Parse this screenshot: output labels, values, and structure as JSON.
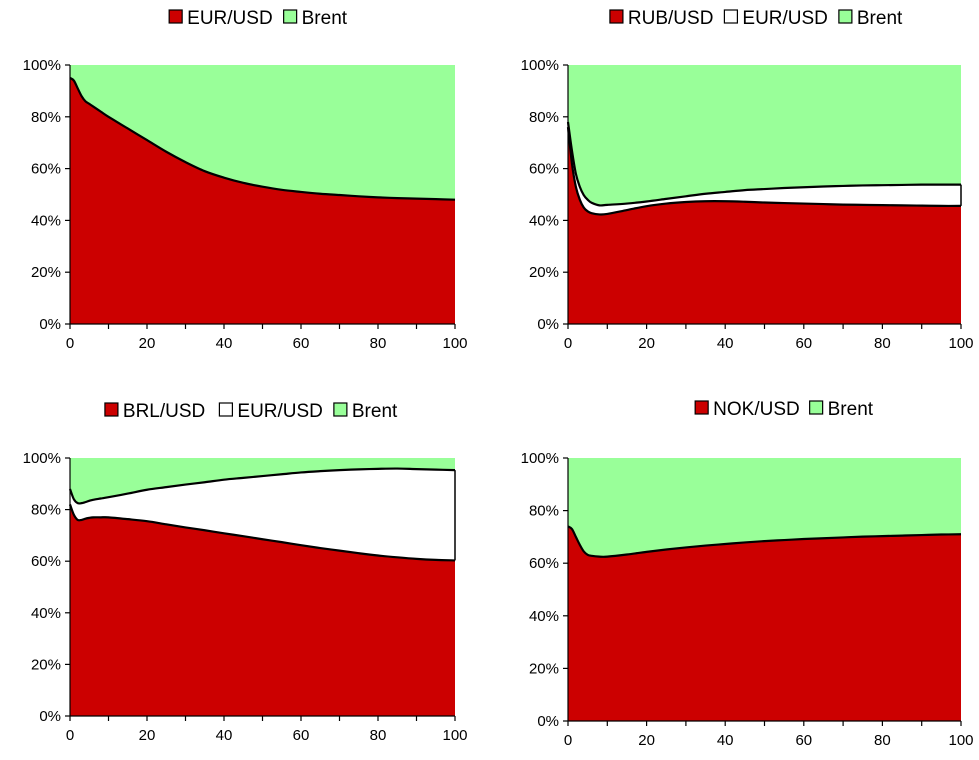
{
  "colors": {
    "red": "#cc0000",
    "green": "#99ff99",
    "white": "#ffffff",
    "line": "#000000"
  },
  "chart_data": [
    {
      "type": "area",
      "stacked": "percent",
      "x": [
        0,
        1,
        2,
        3,
        4,
        5,
        6,
        8,
        10,
        15,
        20,
        25,
        30,
        35,
        40,
        45,
        50,
        55,
        60,
        65,
        70,
        75,
        80,
        85,
        90,
        95,
        100
      ],
      "xlim": [
        0,
        100
      ],
      "ylim": [
        0,
        100
      ],
      "x_ticks": [
        "0",
        "20",
        "40",
        "60",
        "80",
        "100"
      ],
      "y_ticks": [
        "0%",
        "20%",
        "40%",
        "60%",
        "80%",
        "100%"
      ],
      "legend": [
        "EUR/USD",
        "Brent"
      ],
      "series": [
        {
          "name": "EUR/USD",
          "color": "red",
          "values": [
            95,
            94,
            91,
            88,
            86,
            85,
            84,
            82,
            80,
            75.5,
            71,
            66.5,
            62.5,
            59,
            56.5,
            54.5,
            53,
            51.8,
            51,
            50.3,
            49.8,
            49.3,
            48.9,
            48.6,
            48.4,
            48.2,
            48
          ]
        },
        {
          "name": "Brent",
          "color": "green",
          "values": [
            5,
            6,
            9,
            12,
            14,
            15,
            16,
            18,
            20,
            24.5,
            29,
            33.5,
            37.5,
            41,
            43.5,
            45.5,
            47,
            48.2,
            49,
            49.7,
            50.2,
            50.7,
            51.1,
            51.4,
            51.6,
            51.8,
            52
          ]
        }
      ]
    },
    {
      "type": "area",
      "stacked": "percent",
      "x": [
        0,
        1,
        2,
        3,
        4,
        5,
        6,
        8,
        10,
        15,
        20,
        25,
        30,
        35,
        40,
        45,
        50,
        55,
        60,
        65,
        70,
        75,
        80,
        85,
        90,
        95,
        100
      ],
      "xlim": [
        0,
        100
      ],
      "ylim": [
        0,
        100
      ],
      "x_ticks": [
        "0",
        "20",
        "40",
        "60",
        "80",
        "100"
      ],
      "y_ticks": [
        "0%",
        "20%",
        "40%",
        "60%",
        "80%",
        "100%"
      ],
      "legend": [
        "RUB/USD",
        "EUR/USD",
        "Brent"
      ],
      "series": [
        {
          "name": "RUB/USD",
          "color": "red",
          "values": [
            76,
            62,
            53,
            48,
            45,
            43.5,
            42.8,
            42.3,
            42.5,
            44,
            45.5,
            46.5,
            47.1,
            47.4,
            47.4,
            47.2,
            46.9,
            46.7,
            46.5,
            46.3,
            46.1,
            46,
            45.9,
            45.8,
            45.7,
            45.6,
            45.6
          ]
        },
        {
          "name": "EUR/USD",
          "color": "white",
          "values": [
            2,
            5,
            5,
            5,
            4.8,
            4.5,
            4,
            3.5,
            3.5,
            2.5,
            1.8,
            1.8,
            2.2,
            2.9,
            3.6,
            4.5,
            5.2,
            5.8,
            6.3,
            6.8,
            7.2,
            7.5,
            7.7,
            7.9,
            8.1,
            8.2,
            8.2
          ]
        },
        {
          "name": "Brent",
          "color": "green",
          "values": [
            22,
            33,
            42,
            47,
            50.2,
            52,
            53.2,
            54.2,
            54,
            53.5,
            52.7,
            51.7,
            50.7,
            49.7,
            49,
            48.3,
            47.9,
            47.5,
            47.2,
            46.9,
            46.7,
            46.5,
            46.4,
            46.3,
            46.2,
            46.2,
            46.2
          ]
        }
      ]
    },
    {
      "type": "area",
      "stacked": "percent",
      "x": [
        0,
        1,
        2,
        3,
        4,
        5,
        6,
        8,
        10,
        15,
        20,
        25,
        30,
        35,
        40,
        45,
        50,
        55,
        60,
        65,
        70,
        75,
        80,
        85,
        90,
        95,
        100
      ],
      "xlim": [
        0,
        100
      ],
      "ylim": [
        0,
        100
      ],
      "x_ticks": [
        "0",
        "20",
        "40",
        "60",
        "80",
        "100"
      ],
      "y_ticks": [
        "0%",
        "20%",
        "40%",
        "60%",
        "80%",
        "100%"
      ],
      "legend": [
        "BRL/USD",
        "EUR/USD",
        "Brent"
      ],
      "series": [
        {
          "name": "BRL/USD",
          "color": "red",
          "values": [
            82,
            78,
            76,
            76,
            76.5,
            76.8,
            77,
            77,
            77,
            76.3,
            75.5,
            74.3,
            73.1,
            72,
            70.8,
            69.7,
            68.5,
            67.4,
            66.2,
            65.1,
            64.1,
            63.1,
            62.2,
            61.5,
            60.9,
            60.5,
            60.3
          ]
        },
        {
          "name": "EUR/USD",
          "color": "white",
          "values": [
            6,
            6,
            6.5,
            6.5,
            6.4,
            6.6,
            6.8,
            7.3,
            7.8,
            9.9,
            12.2,
            14.4,
            16.6,
            18.6,
            20.8,
            22.6,
            24.5,
            26.3,
            28.2,
            29.8,
            31.2,
            32.5,
            33.6,
            34.4,
            34.8,
            35,
            35
          ]
        },
        {
          "name": "Brent",
          "color": "green",
          "values": [
            12,
            16,
            17.5,
            17.5,
            17.1,
            16.6,
            16.2,
            15.7,
            15.2,
            13.8,
            12.3,
            11.3,
            10.3,
            9.4,
            8.4,
            7.7,
            7,
            6.3,
            5.6,
            5.1,
            4.7,
            4.4,
            4.2,
            4.1,
            4.3,
            4.5,
            4.7
          ]
        }
      ]
    },
    {
      "type": "area",
      "stacked": "percent",
      "x": [
        0,
        1,
        2,
        3,
        4,
        5,
        6,
        8,
        10,
        15,
        20,
        25,
        30,
        35,
        40,
        45,
        50,
        55,
        60,
        65,
        70,
        75,
        80,
        85,
        90,
        95,
        100
      ],
      "xlim": [
        0,
        100
      ],
      "ylim": [
        0,
        100
      ],
      "x_ticks": [
        "0",
        "20",
        "40",
        "60",
        "80",
        "100"
      ],
      "y_ticks": [
        "0%",
        "20%",
        "40%",
        "60%",
        "80%",
        "100%"
      ],
      "legend": [
        "NOK/USD",
        "Brent"
      ],
      "series": [
        {
          "name": "NOK/USD",
          "color": "red",
          "values": [
            74,
            73,
            70,
            67,
            64.5,
            63.2,
            62.8,
            62.5,
            62.5,
            63.3,
            64.3,
            65.2,
            66,
            66.7,
            67.3,
            67.9,
            68.4,
            68.8,
            69.2,
            69.5,
            69.8,
            70.1,
            70.3,
            70.5,
            70.7,
            70.9,
            71
          ]
        },
        {
          "name": "Brent",
          "color": "green",
          "values": [
            26,
            27,
            30,
            33,
            35.5,
            36.8,
            37.2,
            37.5,
            37.5,
            36.7,
            35.7,
            34.8,
            34,
            33.3,
            32.7,
            32.1,
            31.6,
            31.2,
            30.8,
            30.5,
            30.2,
            29.9,
            29.7,
            29.5,
            29.3,
            29.1,
            29
          ]
        }
      ]
    }
  ]
}
